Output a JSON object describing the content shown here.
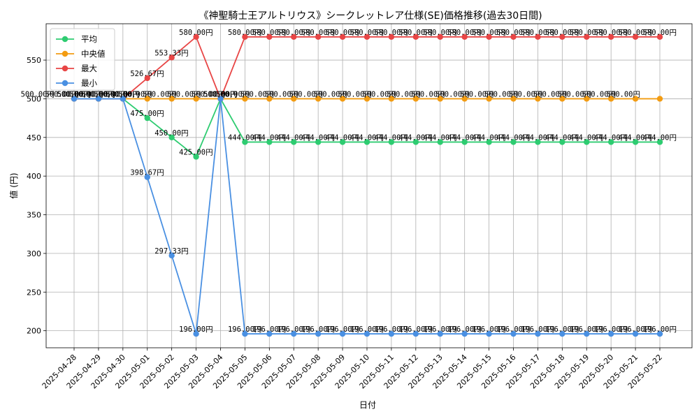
{
  "chart_data": {
    "type": "line",
    "title": "《神聖騎士王アルトリウス》シークレットレア仕様(SE)価格推移(過去30日間)",
    "xlabel": "日付",
    "ylabel": "値 (円)",
    "ylim": [
      178,
      597
    ],
    "yticks": [
      200,
      250,
      300,
      350,
      400,
      450,
      500,
      550
    ],
    "grid": true,
    "legend_position": "top-left",
    "value_suffix": "円",
    "categories": [
      "2025-04-28",
      "2025-04-29",
      "2025-04-30",
      "2025-05-01",
      "2025-05-02",
      "2025-05-03",
      "2025-05-04",
      "2025-05-05",
      "2025-05-06",
      "2025-05-07",
      "2025-05-08",
      "2025-05-09",
      "2025-05-10",
      "2025-05-11",
      "2025-05-12",
      "2025-05-13",
      "2025-05-14",
      "2025-05-15",
      "2025-05-16",
      "2025-05-17",
      "2025-05-18",
      "2025-05-19",
      "2025-05-20",
      "2025-05-21",
      "2025-05-22"
    ],
    "series": [
      {
        "name": "平均",
        "color": "#2ecc71",
        "label_side": "left",
        "values": [
          500,
          500,
          500,
          475,
          450,
          425,
          500,
          444,
          444,
          444,
          444,
          444,
          444,
          444,
          444,
          444,
          444,
          444,
          444,
          444,
          444,
          444,
          444,
          444,
          444
        ]
      },
      {
        "name": "中央値",
        "color": "#f39c12",
        "label_side": "right",
        "values": [
          500,
          500,
          500,
          500,
          500,
          500,
          500,
          500,
          500,
          500,
          500,
          500,
          500,
          500,
          500,
          500,
          500,
          500,
          500,
          500,
          500,
          500,
          500,
          500,
          500
        ]
      },
      {
        "name": "最大",
        "color": "#e84545",
        "label_side": "left",
        "values": [
          500,
          500,
          500,
          526.67,
          553.33,
          580,
          500,
          580,
          580,
          580,
          580,
          580,
          580,
          580,
          580,
          580,
          580,
          580,
          580,
          580,
          580,
          580,
          580,
          580,
          580
        ]
      },
      {
        "name": "最小",
        "color": "#4a90e2",
        "label_side": "left",
        "values": [
          500,
          500,
          500,
          398.67,
          297.33,
          196,
          500,
          196,
          196,
          196,
          196,
          196,
          196,
          196,
          196,
          196,
          196,
          196,
          196,
          196,
          196,
          196,
          196,
          196,
          196
        ]
      }
    ]
  }
}
